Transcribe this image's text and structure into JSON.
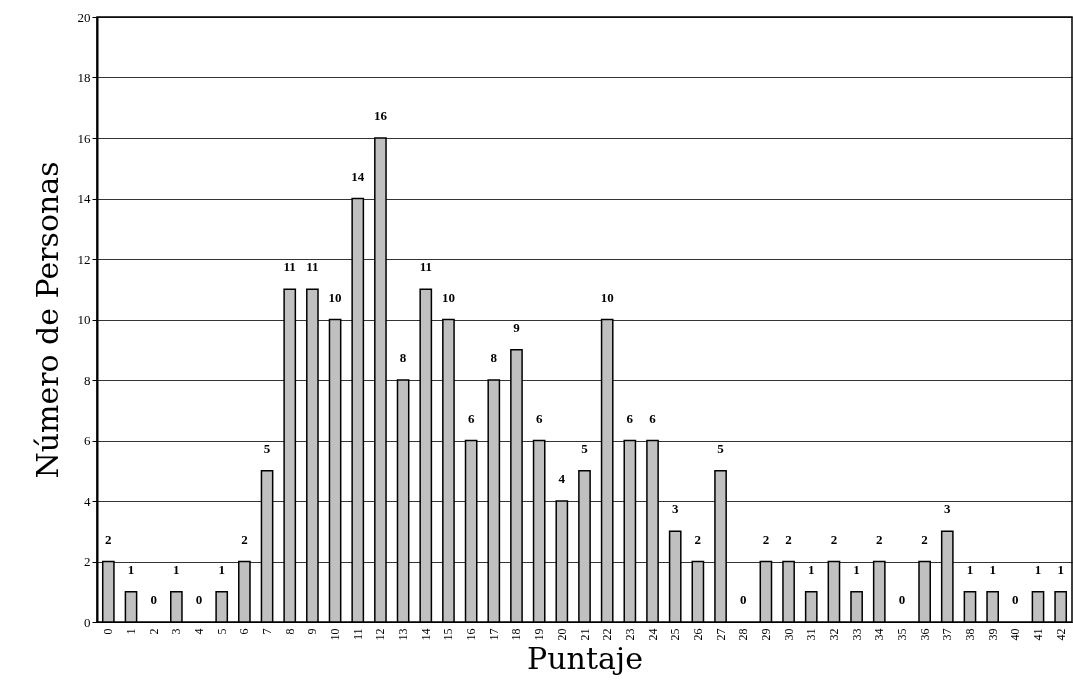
{
  "chart_data": {
    "type": "bar",
    "xlabel": "Puntaje",
    "ylabel": "Número de Personas",
    "categories": [
      "0",
      "1",
      "2",
      "3",
      "4",
      "5",
      "6",
      "7",
      "8",
      "9",
      "10",
      "11",
      "12",
      "13",
      "14",
      "15",
      "16",
      "17",
      "18",
      "19",
      "20",
      "21",
      "22",
      "23",
      "24",
      "25",
      "26",
      "27",
      "28",
      "29",
      "30",
      "31",
      "32",
      "33",
      "34",
      "35",
      "36",
      "37",
      "38",
      "39",
      "40",
      "41",
      "42"
    ],
    "values": [
      2,
      1,
      0,
      1,
      0,
      1,
      2,
      5,
      11,
      11,
      10,
      14,
      16,
      8,
      11,
      10,
      6,
      8,
      9,
      6,
      4,
      5,
      10,
      6,
      6,
      3,
      2,
      5,
      0,
      2,
      2,
      1,
      2,
      1,
      2,
      0,
      2,
      3,
      1,
      1,
      0,
      1,
      1
    ],
    "color": "#c0c0c0",
    "ylim": [
      0,
      20
    ],
    "yticks": [
      0,
      2,
      4,
      6,
      8,
      10,
      12,
      14,
      16,
      18,
      20
    ],
    "grid": "y",
    "data_labels": true
  }
}
